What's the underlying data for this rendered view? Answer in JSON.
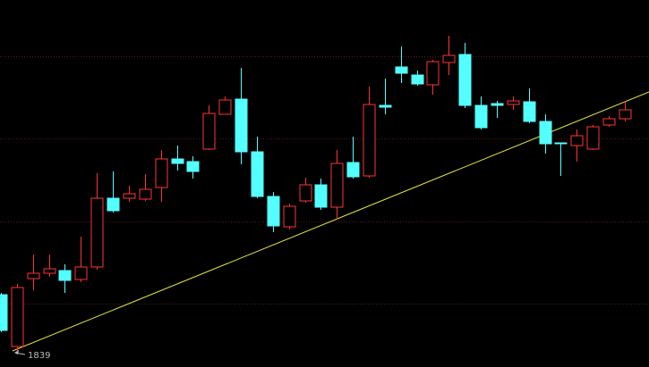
{
  "chart_data": {
    "type": "candlestick",
    "ylim": [
      1821,
      2232
    ],
    "gridlines": [
      2169,
      2077,
      1984,
      1892
    ],
    "up_color": "#ff3434",
    "down_color": "#54ffff",
    "low_annotation": 1839,
    "open": [
      1902,
      1844,
      1920,
      1926,
      1929,
      1919,
      1933,
      2010,
      2010,
      2009,
      2022,
      2054,
      2051,
      2065,
      2104,
      2121,
      2062,
      2012,
      1978,
      2007,
      2025,
      2000,
      2050,
      2035,
      2114,
      2157,
      2148,
      2137,
      2162,
      2171,
      2114,
      2116,
      2115,
      2118,
      2096,
      2072,
      2069,
      2065,
      2092,
      2099
    ],
    "high": [
      1904,
      1914,
      1947,
      1947,
      1936,
      1967,
      2038,
      2040,
      2024,
      2037,
      2064,
      2069,
      2057,
      2114,
      2124,
      2156,
      2079,
      2017,
      2004,
      2033,
      2032,
      2064,
      2079,
      2135,
      2144,
      2180,
      2153,
      2165,
      2192,
      2184,
      2124,
      2119,
      2124,
      2133,
      2104,
      2072,
      2087,
      2092,
      2102,
      2119
    ],
    "low": [
      1860,
      1839,
      1907,
      1922,
      1904,
      1916,
      1930,
      1994,
      2006,
      2007,
      2006,
      2041,
      2032,
      2064,
      2104,
      2048,
      2010,
      1972,
      1975,
      2005,
      1997,
      1986,
      2032,
      2033,
      2104,
      2139,
      2136,
      2126,
      2148,
      2111,
      2087,
      2100,
      2109,
      2094,
      2060,
      2035,
      2051,
      2064,
      2090,
      2096
    ],
    "close": [
      1862,
      1910,
      1926,
      1931,
      1918,
      1933,
      2010,
      1996,
      2015,
      2020,
      2054,
      2049,
      2040,
      2105,
      2120,
      2062,
      2012,
      1979,
      2001,
      2025,
      2000,
      2049,
      2034,
      2115,
      2112,
      2150,
      2138,
      2163,
      2170,
      2114,
      2089,
      2114,
      2119,
      2096,
      2071,
      2071,
      2080,
      2090,
      2099,
      2109
    ]
  }
}
